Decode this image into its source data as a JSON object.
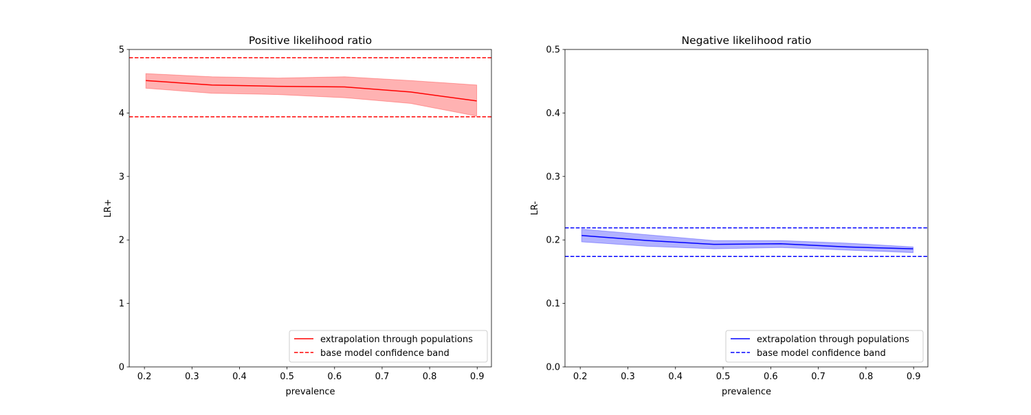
{
  "chart_data": [
    {
      "type": "line",
      "title": "Positive likelihood ratio",
      "xlabel": "prevalence",
      "ylabel": "LR+",
      "xlim": [
        0.168,
        0.93
      ],
      "ylim": [
        0,
        5
      ],
      "xticks": [
        "0.2",
        "0.3",
        "0.4",
        "0.5",
        "0.6",
        "0.7",
        "0.8",
        "0.9"
      ],
      "yticks": [
        "0",
        "1",
        "2",
        "3",
        "4",
        "5"
      ],
      "grid": false,
      "legend_position": "lower-right",
      "color": "#ff0000",
      "x": [
        0.203,
        0.342,
        0.481,
        0.621,
        0.76,
        0.899
      ],
      "series": [
        {
          "name": "extrapolation through populations",
          "style": "solid",
          "values": [
            4.51,
            4.44,
            4.42,
            4.41,
            4.33,
            4.19
          ]
        }
      ],
      "band": {
        "upper": [
          4.62,
          4.57,
          4.55,
          4.57,
          4.51,
          4.44
        ],
        "lower": [
          4.39,
          4.31,
          4.29,
          4.24,
          4.15,
          3.95
        ]
      },
      "hlines": {
        "name": "base model confidence band",
        "style": "dashed",
        "values": [
          4.87,
          3.94
        ]
      }
    },
    {
      "type": "line",
      "title": "Negative likelihood ratio",
      "xlabel": "prevalence",
      "ylabel": "LR-",
      "xlim": [
        0.168,
        0.93
      ],
      "ylim": [
        0,
        0.5
      ],
      "xticks": [
        "0.2",
        "0.3",
        "0.4",
        "0.5",
        "0.6",
        "0.7",
        "0.8",
        "0.9"
      ],
      "yticks": [
        "0.0",
        "0.1",
        "0.2",
        "0.3",
        "0.4",
        "0.5"
      ],
      "grid": false,
      "legend_position": "lower-right",
      "color": "#0000ff",
      "x": [
        0.203,
        0.342,
        0.481,
        0.621,
        0.76,
        0.899
      ],
      "series": [
        {
          "name": "extrapolation through populations",
          "style": "solid",
          "values": [
            0.207,
            0.199,
            0.193,
            0.194,
            0.189,
            0.186
          ]
        }
      ],
      "band": {
        "upper": [
          0.217,
          0.208,
          0.199,
          0.199,
          0.195,
          0.189
        ],
        "lower": [
          0.197,
          0.19,
          0.186,
          0.188,
          0.184,
          0.18
        ]
      },
      "hlines": {
        "name": "base model confidence band",
        "style": "dashed",
        "values": [
          0.219,
          0.174
        ]
      }
    }
  ]
}
